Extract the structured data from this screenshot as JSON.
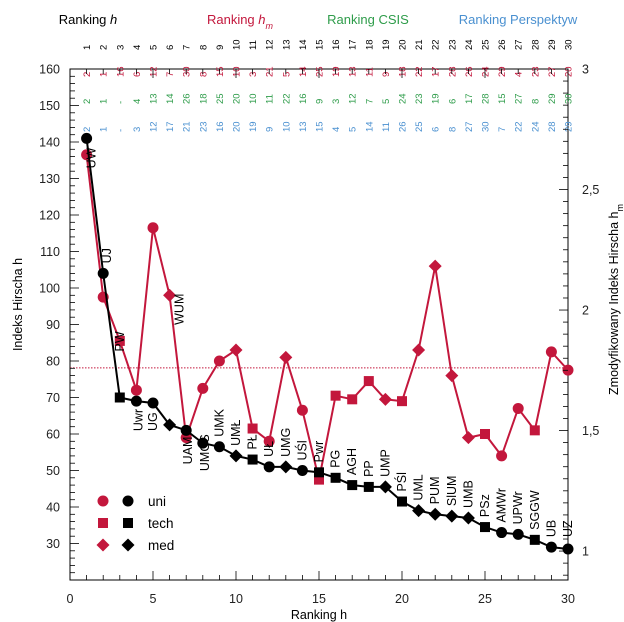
{
  "chart_data": {
    "type": "line",
    "headers": [
      {
        "text": "Ranking h",
        "color": "#000000"
      },
      {
        "text": "Ranking h_m",
        "color": "#c3173c"
      },
      {
        "text": "Ranking CSIS",
        "color": "#2e9c4a"
      },
      {
        "text": "Ranking Perspektyw",
        "color": "#4a90d0"
      }
    ],
    "ranking_rows": {
      "ranking_h": [
        1,
        2,
        3,
        4,
        5,
        6,
        7,
        8,
        9,
        10,
        11,
        12,
        13,
        14,
        15,
        16,
        17,
        18,
        19,
        20,
        21,
        22,
        23,
        24,
        25,
        26,
        27,
        28,
        29,
        30
      ],
      "ranking_hm": [
        2,
        1,
        16,
        6,
        12,
        7,
        30,
        8,
        15,
        10,
        3,
        21,
        5,
        14,
        25,
        19,
        13,
        11,
        9,
        18,
        22,
        17,
        28,
        26,
        24,
        29,
        4,
        23,
        27,
        20
      ],
      "ranking_csis": [
        "2",
        "1",
        "-",
        "4",
        "13",
        "14",
        "26",
        "18",
        "25",
        "20",
        "10",
        "11",
        "22",
        "16",
        "9",
        "3",
        "12",
        "7",
        "5",
        "24",
        "23",
        "19",
        "6",
        "17",
        "28",
        "15",
        "27",
        "8",
        "29",
        "30"
      ],
      "ranking_perspektyw": [
        "2",
        "1",
        "-",
        "3",
        "12",
        "17",
        "21",
        "23",
        "16",
        "20",
        "19",
        "9",
        "10",
        "13",
        "15",
        "4",
        "5",
        "14",
        "11",
        "26",
        "25",
        "6",
        "8",
        "27",
        "30",
        "7",
        "22",
        "24",
        "28",
        "29"
      ]
    },
    "x_axis": {
      "label": "Ranking h",
      "range": [
        0,
        30
      ],
      "ticks": [
        0,
        5,
        10,
        15,
        20,
        25,
        30
      ]
    },
    "y_axis_left": {
      "label": "Indeks Hirscha h",
      "range": [
        20,
        160
      ],
      "ticks": [
        30,
        40,
        50,
        60,
        70,
        80,
        90,
        100,
        110,
        120,
        130,
        140,
        150,
        160
      ]
    },
    "y_axis_right": {
      "label": "Zmodyfikowany Indeks Hirscha h_m",
      "range": [
        0.88,
        3.0
      ],
      "ticks": [
        "1",
        "1,5",
        "2",
        "2,5",
        "3"
      ],
      "tick_values": [
        1,
        1.5,
        2,
        2.5,
        3
      ]
    },
    "reference_line": {
      "hm": 1.76,
      "style": "dotted",
      "color": "#c3173c"
    },
    "series": [
      {
        "name": "h",
        "color": "#000000",
        "points": [
          {
            "x": 1,
            "y": 141,
            "type": "uni",
            "label": "UW"
          },
          {
            "x": 2,
            "y": 104,
            "type": "uni",
            "label": "UJ"
          },
          {
            "x": 3,
            "y": 70,
            "type": "tech",
            "label": "PW"
          },
          {
            "x": 4,
            "y": 69,
            "type": "uni",
            "label": "Uwr"
          },
          {
            "x": 5,
            "y": 68.5,
            "type": "uni",
            "label": "UG"
          },
          {
            "x": 6,
            "y": 62.5,
            "type": "med",
            "label": "WUM"
          },
          {
            "x": 7,
            "y": 61,
            "type": "uni",
            "label": "UAM"
          },
          {
            "x": 8,
            "y": 57.5,
            "type": "uni",
            "label": "UMCS"
          },
          {
            "x": 9,
            "y": 56.5,
            "type": "uni",
            "label": "UMK"
          },
          {
            "x": 10,
            "y": 54,
            "type": "med",
            "label": "UMŁ"
          },
          {
            "x": 11,
            "y": 53,
            "type": "tech",
            "label": "PŁ"
          },
          {
            "x": 12,
            "y": 51,
            "type": "uni",
            "label": "UŁ"
          },
          {
            "x": 13,
            "y": 51,
            "type": "med",
            "label": "UMG"
          },
          {
            "x": 14,
            "y": 50,
            "type": "uni",
            "label": "UŚl"
          },
          {
            "x": 15,
            "y": 49.5,
            "type": "tech",
            "label": "Pwr"
          },
          {
            "x": 16,
            "y": 48,
            "type": "tech",
            "label": "PG"
          },
          {
            "x": 17,
            "y": 46,
            "type": "tech",
            "label": "AGH"
          },
          {
            "x": 18,
            "y": 45.5,
            "type": "tech",
            "label": "PP"
          },
          {
            "x": 19,
            "y": 45.5,
            "type": "med",
            "label": "UMP"
          },
          {
            "x": 20,
            "y": 41.5,
            "type": "tech",
            "label": "PŚl"
          },
          {
            "x": 21,
            "y": 39,
            "type": "med",
            "label": "UML"
          },
          {
            "x": 22,
            "y": 38,
            "type": "med",
            "label": "PUM"
          },
          {
            "x": 23,
            "y": 37.5,
            "type": "med",
            "label": "SlUM"
          },
          {
            "x": 24,
            "y": 37,
            "type": "med",
            "label": "UMB"
          },
          {
            "x": 25,
            "y": 34.5,
            "type": "tech",
            "label": "PSz"
          },
          {
            "x": 26,
            "y": 33,
            "type": "uni",
            "label": "AMWr"
          },
          {
            "x": 27,
            "y": 32.5,
            "type": "uni",
            "label": "UPWr"
          },
          {
            "x": 28,
            "y": 31,
            "type": "tech",
            "label": "SGGW"
          },
          {
            "x": 29,
            "y": 29,
            "type": "uni",
            "label": "UB"
          },
          {
            "x": 30,
            "y": 28.5,
            "type": "uni",
            "label": "UZ"
          }
        ]
      },
      {
        "name": "h_m",
        "color": "#c3173c",
        "points": [
          {
            "x": 1,
            "y": 136.5,
            "type": "uni"
          },
          {
            "x": 2,
            "y": 97.5,
            "type": "uni"
          },
          {
            "x": 3,
            "y": 85.5,
            "type": "tech"
          },
          {
            "x": 4,
            "y": 72,
            "type": "uni"
          },
          {
            "x": 5,
            "y": 116.5,
            "type": "uni"
          },
          {
            "x": 6,
            "y": 98,
            "type": "med"
          },
          {
            "x": 7,
            "y": 59,
            "type": "uni"
          },
          {
            "x": 8,
            "y": 72.5,
            "type": "uni"
          },
          {
            "x": 9,
            "y": 80,
            "type": "uni"
          },
          {
            "x": 10,
            "y": 83,
            "type": "med"
          },
          {
            "x": 11,
            "y": 61.5,
            "type": "tech"
          },
          {
            "x": 12,
            "y": 58,
            "type": "uni"
          },
          {
            "x": 13,
            "y": 81,
            "type": "med"
          },
          {
            "x": 14,
            "y": 66.5,
            "type": "uni"
          },
          {
            "x": 15,
            "y": 47.5,
            "type": "tech"
          },
          {
            "x": 16,
            "y": 70.5,
            "type": "tech"
          },
          {
            "x": 17,
            "y": 69.5,
            "type": "tech"
          },
          {
            "x": 18,
            "y": 74.5,
            "type": "tech"
          },
          {
            "x": 19,
            "y": 69.5,
            "type": "med"
          },
          {
            "x": 20,
            "y": 69,
            "type": "tech"
          },
          {
            "x": 21,
            "y": 83,
            "type": "med"
          },
          {
            "x": 22,
            "y": 106,
            "type": "med"
          },
          {
            "x": 23,
            "y": 76,
            "type": "med"
          },
          {
            "x": 24,
            "y": 59,
            "type": "med"
          },
          {
            "x": 25,
            "y": 60,
            "type": "tech"
          },
          {
            "x": 26,
            "y": 54,
            "type": "uni"
          },
          {
            "x": 27,
            "y": 67,
            "type": "uni"
          },
          {
            "x": 28,
            "y": 61,
            "type": "tech"
          },
          {
            "x": 29,
            "y": 82.5,
            "type": "uni"
          },
          {
            "x": 30,
            "y": 77.5,
            "type": "uni"
          }
        ]
      }
    ],
    "legend": {
      "placement": "bottom-left",
      "items": [
        {
          "label": "uni",
          "marker": "circle"
        },
        {
          "label": "tech",
          "marker": "square"
        },
        {
          "label": "med",
          "marker": "diamond"
        }
      ]
    }
  }
}
